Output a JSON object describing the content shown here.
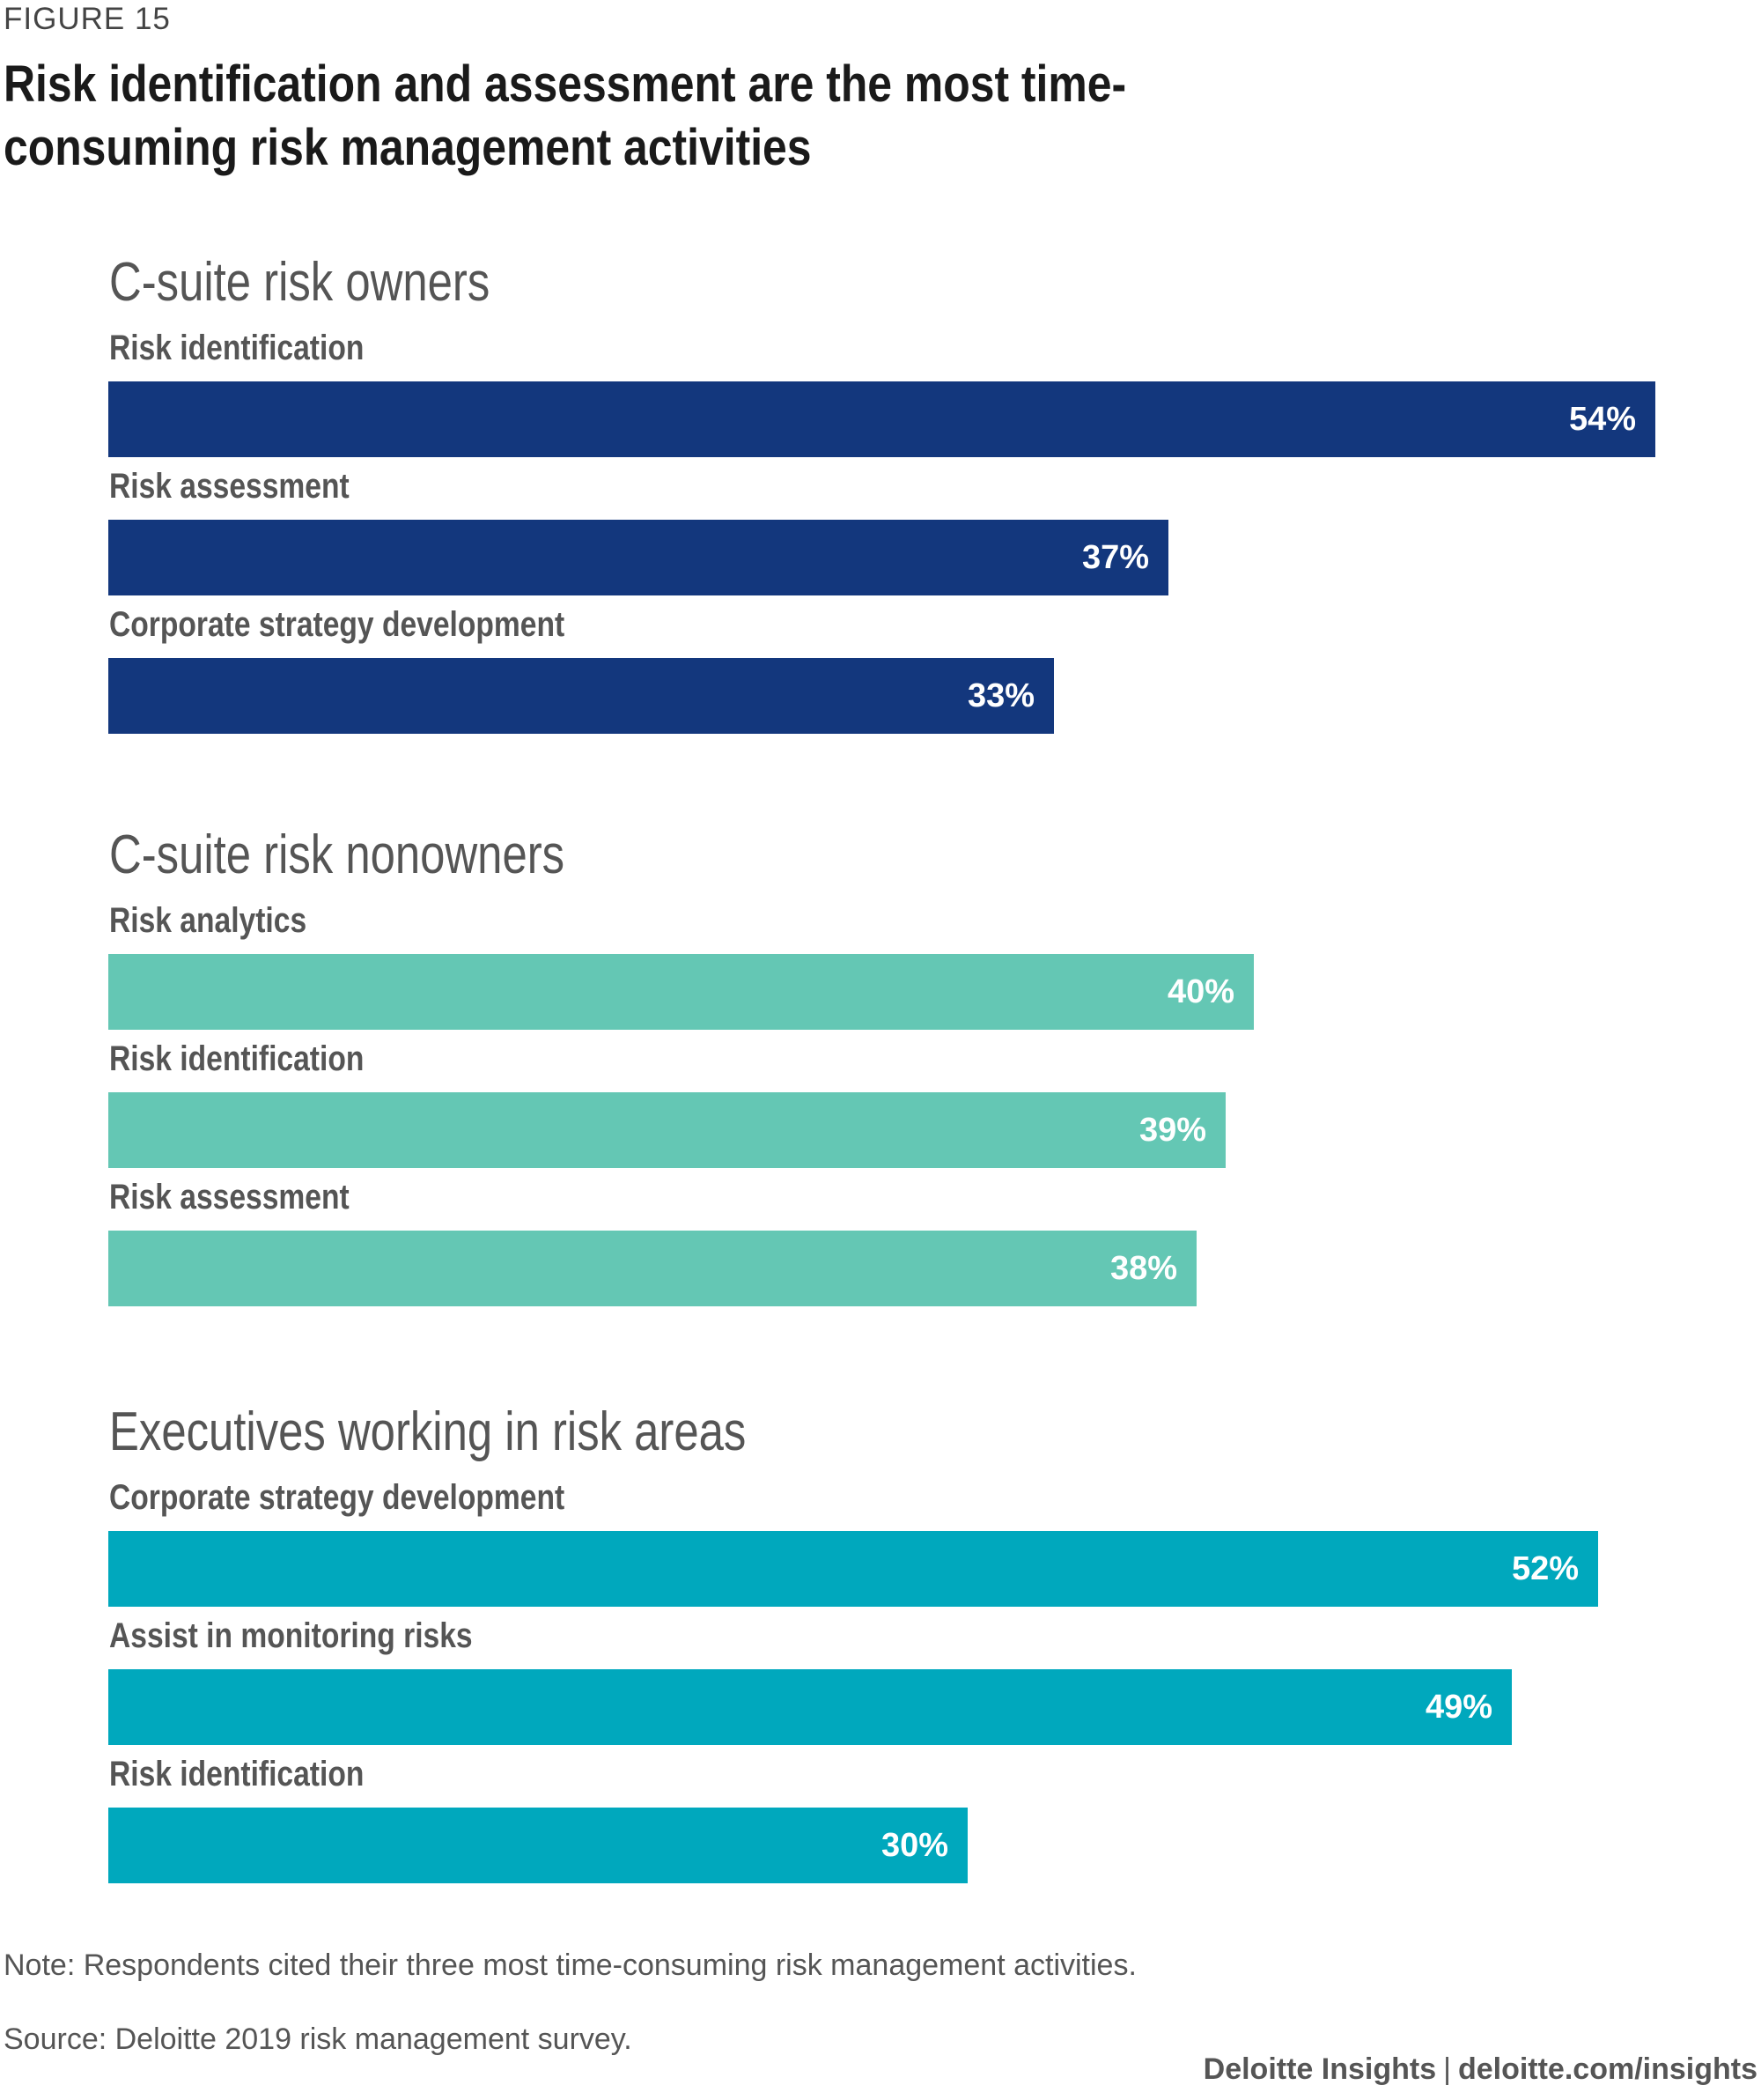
{
  "figure_label": "FIGURE 15",
  "title": "Risk identification and assessment are the most time-consuming risk management activities",
  "note": "Note: Respondents cited their three most time-consuming risk management activities.",
  "source": "Source: Deloitte 2019 risk management survey.",
  "credit": {
    "brand": "Deloitte Insights",
    "separator": "|",
    "url": "deloitte.com/insights"
  },
  "chart_data": {
    "type": "bar",
    "orientation": "horizontal",
    "title": "Risk identification and assessment are the most time-consuming risk management activities",
    "unit": "%",
    "xlim": [
      0,
      60
    ],
    "groups": [
      {
        "name": "C-suite risk owners",
        "color": "#13377D",
        "categories": [
          "Risk identification",
          "Risk assessment",
          "Corporate strategy development"
        ],
        "values": [
          54,
          37,
          33
        ],
        "value_labels": [
          "54%",
          "37%",
          "33%"
        ]
      },
      {
        "name": "C-suite risk nonowners",
        "color": "#64C7B4",
        "categories": [
          "Risk analytics",
          "Risk identification",
          "Risk assessment"
        ],
        "values": [
          40,
          39,
          38
        ],
        "value_labels": [
          "40%",
          "39%",
          "38%"
        ]
      },
      {
        "name": "Executives working in risk areas",
        "color": "#00A8BD",
        "categories": [
          "Corporate strategy development",
          "Assist in monitoring risks",
          "Risk identification"
        ],
        "values": [
          52,
          49,
          30
        ],
        "value_labels": [
          "52%",
          "49%",
          "30%"
        ]
      }
    ]
  }
}
